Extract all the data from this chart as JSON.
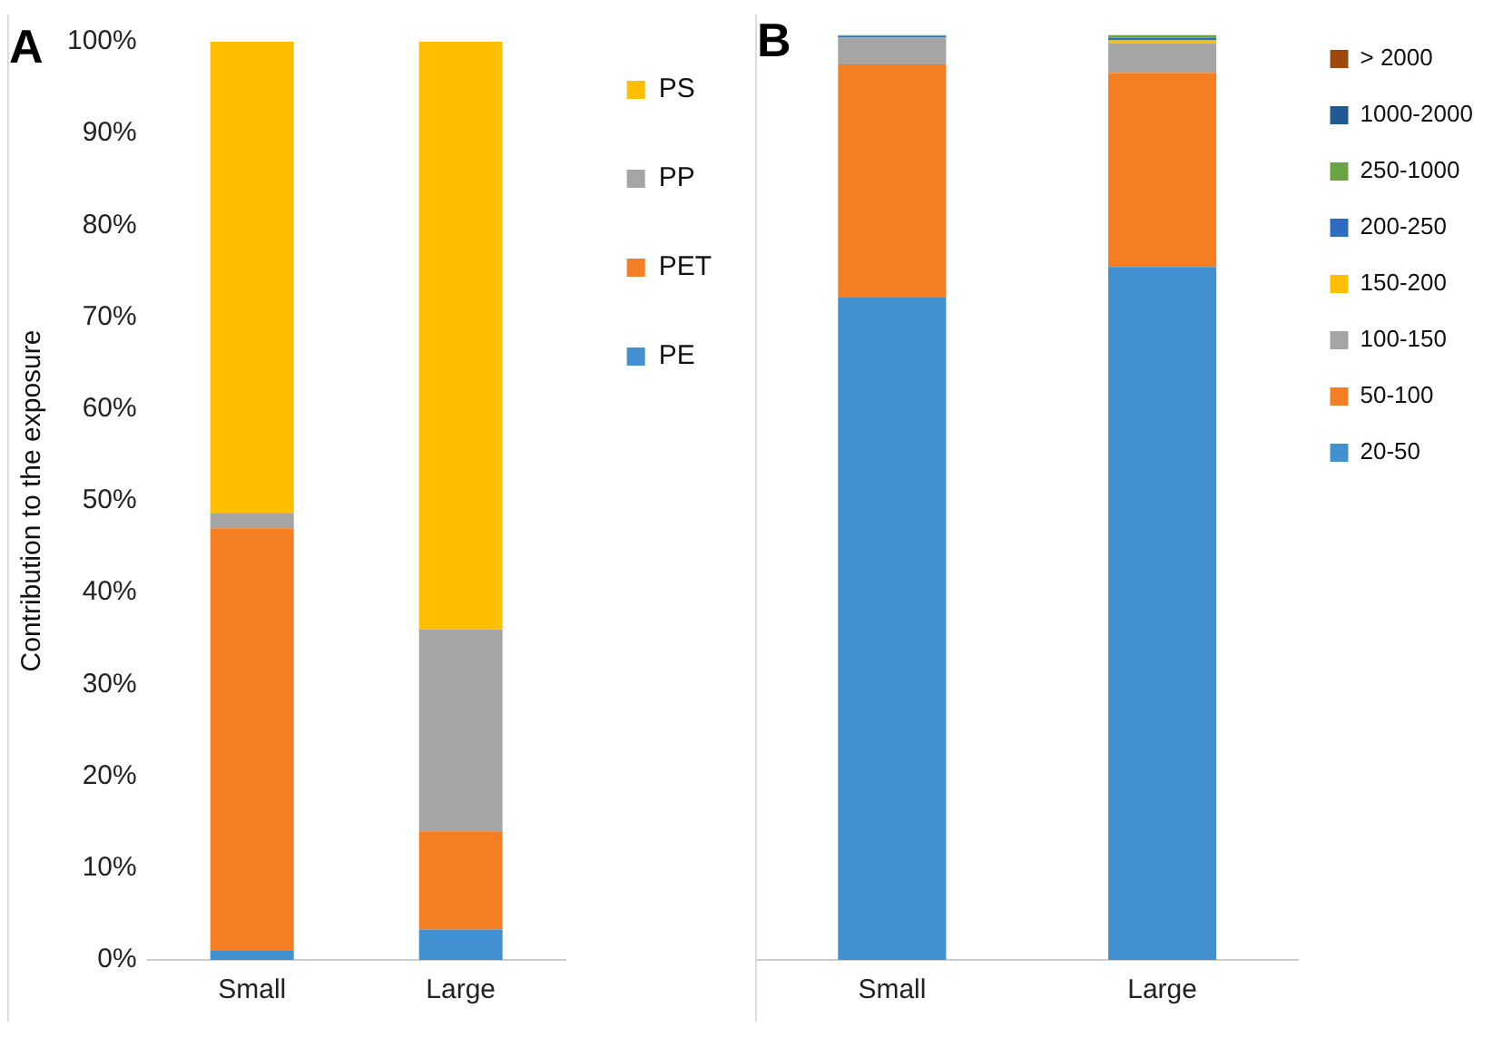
{
  "chart_data": [
    {
      "type": "bar",
      "title": "A",
      "ylabel": "Contribution to the exposure",
      "stacked": true,
      "categories": [
        "Small",
        "Large"
      ],
      "ylim": [
        0,
        100
      ],
      "yticks": [
        {
          "value": 0,
          "label": "0%"
        },
        {
          "value": 10,
          "label": "10%"
        },
        {
          "value": 20,
          "label": "20%"
        },
        {
          "value": 30,
          "label": "30%"
        },
        {
          "value": 40,
          "label": "40%"
        },
        {
          "value": 50,
          "label": "50%"
        },
        {
          "value": 60,
          "label": "60%"
        },
        {
          "value": 70,
          "label": "70%"
        },
        {
          "value": 80,
          "label": "80%"
        },
        {
          "value": 90,
          "label": "90%"
        },
        {
          "value": 100,
          "label": "100%"
        }
      ],
      "grid": false,
      "legend": "right",
      "series": [
        {
          "name": "PE",
          "color": "#4290d0",
          "values": [
            1,
            3.3
          ]
        },
        {
          "name": "PET",
          "color": "#f47f23",
          "values": [
            46,
            10.7
          ]
        },
        {
          "name": "PP",
          "color": "#a5a5a5",
          "values": [
            1.7,
            22
          ]
        },
        {
          "name": "PS",
          "color": "#ffbf00",
          "values": [
            51.3,
            64
          ]
        }
      ]
    },
    {
      "type": "bar",
      "title": "B",
      "stacked": true,
      "categories": [
        "Small",
        "Large"
      ],
      "ylim": [
        0,
        100
      ],
      "tick_labels": "x",
      "grid": false,
      "legend": "right",
      "series": [
        {
          "name": "20-50",
          "color": "#4290d0",
          "values": [
            71.6,
            74.9
          ]
        },
        {
          "name": "50-100",
          "color": "#f47f23",
          "values": [
            25.2,
            21
          ]
        },
        {
          "name": "100-150",
          "color": "#a5a5a5",
          "values": [
            2.9,
            3.2
          ]
        },
        {
          "name": "150-200",
          "color": "#ffbf00",
          "values": [
            0,
            0.3
          ]
        },
        {
          "name": "200-250",
          "color": "#2f6cc0",
          "values": [
            0.2,
            0.3
          ]
        },
        {
          "name": "250-1000",
          "color": "#6aa344",
          "values": [
            0.1,
            0.3
          ]
        },
        {
          "name": "1000-2000",
          "color": "#1f5a93",
          "values": [
            0,
            0
          ]
        },
        {
          "name": "> 2000",
          "color": "#9e480e",
          "values": [
            0,
            0
          ]
        }
      ]
    }
  ]
}
